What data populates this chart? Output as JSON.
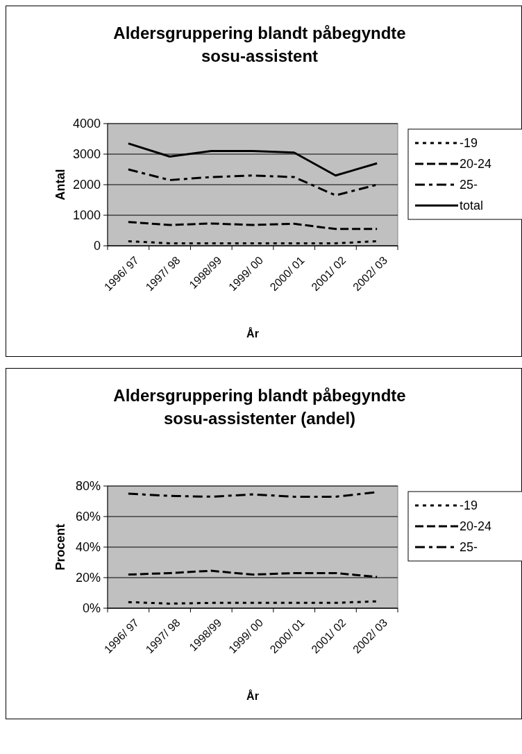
{
  "chart_data": [
    {
      "type": "line",
      "title": "Aldersgruppering blandt påbegyndte sosu-assistent",
      "xlabel": "År",
      "ylabel": "Antal",
      "categories": [
        "1996/ 97",
        "1997/ 98",
        "1998/99",
        "1999/ 00",
        "2000/ 01",
        "2001/ 02",
        "2002/ 03"
      ],
      "series": [
        {
          "name": "-19",
          "color": "#000000",
          "line_style": "dotted",
          "values": [
            150,
            80,
            80,
            80,
            80,
            80,
            150
          ]
        },
        {
          "name": "20-24",
          "color": "#000000",
          "line_style": "dashed",
          "values": [
            780,
            680,
            730,
            680,
            720,
            550,
            550
          ]
        },
        {
          "name": "25-",
          "color": "#000000",
          "line_style": "dashdot",
          "values": [
            2500,
            2150,
            2250,
            2300,
            2250,
            1650,
            2000
          ]
        },
        {
          "name": "total",
          "color": "#000000",
          "line_style": "solid",
          "values": [
            3350,
            2920,
            3100,
            3100,
            3050,
            2300,
            2700
          ]
        }
      ],
      "ylim": [
        0,
        4000
      ],
      "yticks": [
        0,
        1000,
        2000,
        3000,
        4000
      ],
      "grid": "y",
      "legend": "right"
    },
    {
      "type": "line",
      "title": "Aldersgruppering blandt påbegyndte sosu-assistenter (andel)",
      "xlabel": "År",
      "ylabel": "Procent",
      "categories": [
        "1996/ 97",
        "1997/ 98",
        "1998/99",
        "1999/ 00",
        "2000/ 01",
        "2001/ 02",
        "2002/ 03"
      ],
      "series": [
        {
          "name": "-19",
          "color": "#000000",
          "line_style": "dotted",
          "values": [
            4,
            3,
            3.5,
            3.5,
            3.5,
            3.5,
            4.5
          ]
        },
        {
          "name": "20-24",
          "color": "#000000",
          "line_style": "dashed",
          "values": [
            22,
            23,
            24.5,
            22,
            23,
            23,
            20.5
          ]
        },
        {
          "name": "25-",
          "color": "#000000",
          "line_style": "dashdot",
          "values": [
            75,
            73.5,
            73,
            74.5,
            73,
            73,
            76
          ]
        }
      ],
      "ylim": [
        0,
        80
      ],
      "yticks": [
        {
          "value": 0,
          "label": "0%"
        },
        {
          "value": 20,
          "label": "20%"
        },
        {
          "value": 40,
          "label": "40%"
        },
        {
          "value": 60,
          "label": "60%"
        },
        {
          "value": 80,
          "label": "80%"
        }
      ],
      "grid": "y",
      "legend": "right"
    }
  ]
}
